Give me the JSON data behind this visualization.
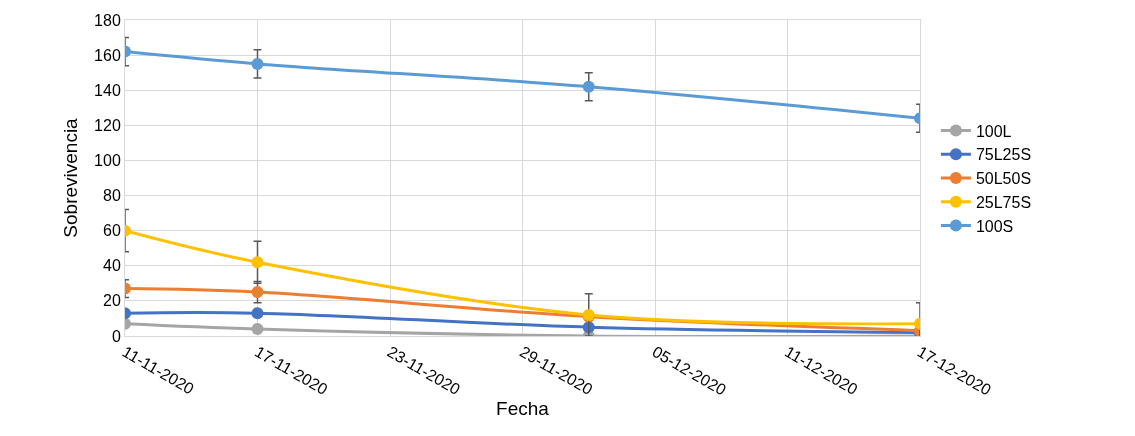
{
  "chart_data": {
    "type": "line",
    "xlabel": "Fecha",
    "ylabel": "Sobrevivencia",
    "x": [
      "2020-11-11",
      "2020-11-17",
      "2020-12-02",
      "2020-12-17"
    ],
    "series": [
      {
        "name": "100L",
        "color": "#a5a5a5",
        "values": [
          7,
          4,
          0,
          0
        ]
      },
      {
        "name": "75L25S",
        "color": "#4472c4",
        "values": [
          13,
          13,
          5,
          2
        ]
      },
      {
        "name": "50L50S",
        "color": "#ed7d31",
        "values": [
          27,
          25,
          11,
          3
        ],
        "errors": [
          5,
          6,
          null,
          null
        ]
      },
      {
        "name": "25L75S",
        "color": "#ffc000",
        "values": [
          60,
          42,
          12,
          7
        ],
        "errors": [
          12,
          12,
          12,
          12
        ]
      },
      {
        "name": "100S",
        "color": "#5b9bd5",
        "values": [
          162,
          155,
          142,
          124
        ],
        "errors": [
          8,
          8,
          8,
          8
        ]
      }
    ],
    "xlim": [
      "2020-11-11",
      "2020-12-17"
    ],
    "xticks": [
      {
        "value": "2020-11-11",
        "label": "11-11-2020"
      },
      {
        "value": "2020-11-17",
        "label": "17-11-2020"
      },
      {
        "value": "2020-11-23",
        "label": "23-11-2020"
      },
      {
        "value": "2020-11-29",
        "label": "29-11-2020"
      },
      {
        "value": "2020-12-05",
        "label": "05-12-2020"
      },
      {
        "value": "2020-12-11",
        "label": "11-12-2020"
      },
      {
        "value": "2020-12-17",
        "label": "17-12-2020"
      }
    ],
    "ylim": [
      0,
      180
    ],
    "yticks": [
      0,
      20,
      40,
      60,
      80,
      100,
      120,
      140,
      160,
      180
    ],
    "grid": true,
    "legend": "right",
    "marker": "circle",
    "line_style": "solid"
  }
}
